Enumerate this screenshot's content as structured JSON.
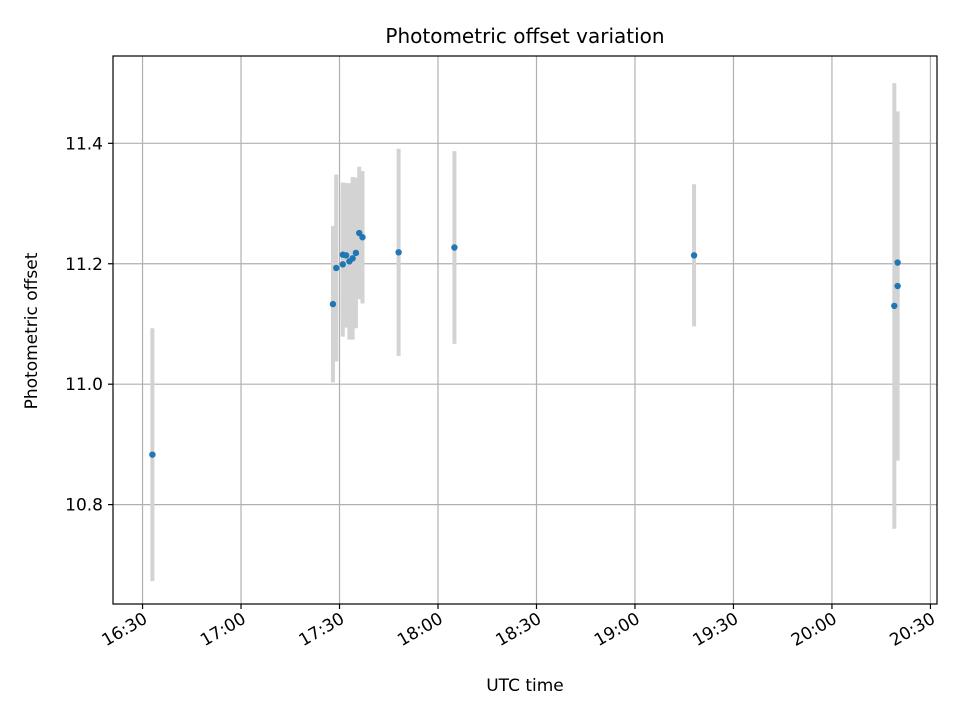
{
  "chart_data": {
    "type": "scatter",
    "title": "Photometric offset variation",
    "xlabel": "UTC time",
    "ylabel": "Photometric offset",
    "x_ticks": [
      "16:30",
      "17:00",
      "17:30",
      "18:00",
      "18:30",
      "19:00",
      "19:30",
      "20:00",
      "20:30"
    ],
    "y_ticks": [
      "10.8",
      "11.0",
      "11.2",
      "11.4"
    ],
    "y_tick_values": [
      10.8,
      11.0,
      11.2,
      11.4
    ],
    "xlim": [
      "16:21",
      "20:32"
    ],
    "ylim": [
      10.635,
      11.545
    ],
    "grid": true,
    "colors": {
      "point": "#1f77b4",
      "errorbar": "#d3d3d3",
      "grid": "#b0b0b0"
    },
    "points": [
      {
        "x": "16:33",
        "y": 10.883,
        "y_err": 0.21
      },
      {
        "x": "17:28",
        "y": 11.133,
        "y_err": 0.13
      },
      {
        "x": "17:29",
        "y": 11.193,
        "y_err": 0.155
      },
      {
        "x": "17:31",
        "y": 11.199,
        "y_err": 0.12
      },
      {
        "x": "17:31",
        "y": 11.215,
        "y_err": 0.12
      },
      {
        "x": "17:32",
        "y": 11.214,
        "y_err": 0.12
      },
      {
        "x": "17:33",
        "y": 11.204,
        "y_err": 0.13
      },
      {
        "x": "17:34",
        "y": 11.209,
        "y_err": 0.135
      },
      {
        "x": "17:35",
        "y": 11.218,
        "y_err": 0.125
      },
      {
        "x": "17:36",
        "y": 11.251,
        "y_err": 0.11
      },
      {
        "x": "17:37",
        "y": 11.244,
        "y_err": 0.11
      },
      {
        "x": "17:48",
        "y": 11.219,
        "y_err": 0.172
      },
      {
        "x": "18:05",
        "y": 11.227,
        "y_err": 0.16
      },
      {
        "x": "19:18",
        "y": 11.214,
        "y_err": 0.118
      },
      {
        "x": "20:19",
        "y": 11.13,
        "y_err": 0.37
      },
      {
        "x": "20:20",
        "y": 11.163,
        "y_err": 0.29
      },
      {
        "x": "20:20",
        "y": 11.202,
        "y_err": 0.19
      }
    ]
  }
}
